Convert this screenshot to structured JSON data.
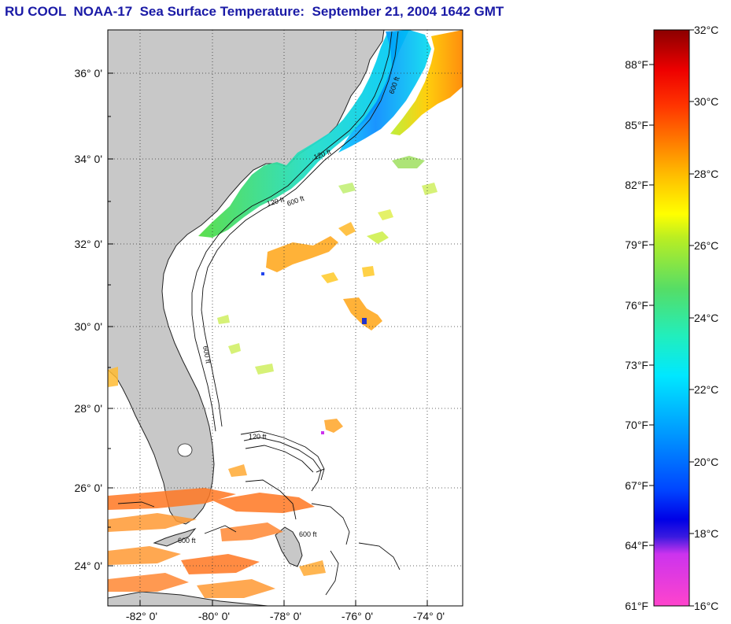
{
  "title": "RU COOL  NOAA-17  Sea Surface Temperature:  September 21, 2004 1642 GMT",
  "map": {
    "lat_labels": [
      "36° 0'",
      "34° 0'",
      "32° 0'",
      "30° 0'",
      "28° 0'",
      "26° 0'",
      "24° 0'"
    ],
    "lon_labels": [
      "-82° 0'",
      "-80° 0'",
      "-78° 0'",
      "-76° 0'",
      "-74° 0'"
    ],
    "contour_labels": [
      "120 ft",
      "600 ft",
      "120 ft",
      "600 ft",
      "600 ft",
      "120 ft",
      "600 ft",
      "600 ft"
    ],
    "land_color": "#c8c8c8",
    "ocean_color": "#ffffff"
  },
  "colorbar": {
    "fahrenheit_labels": [
      "88°F",
      "85°F",
      "82°F",
      "79°F",
      "76°F",
      "73°F",
      "70°F",
      "67°F",
      "64°F",
      "61°F"
    ],
    "celsius_labels": [
      "32°C",
      "30°C",
      "28°C",
      "26°C",
      "24°C",
      "22°C",
      "20°C",
      "18°C",
      "16°C"
    ],
    "min_c": 16,
    "max_c": 32
  }
}
